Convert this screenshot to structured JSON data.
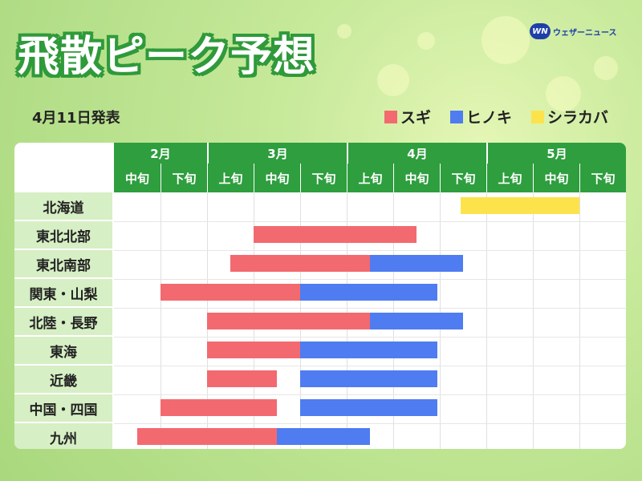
{
  "header": {
    "title": "飛散ピーク予想",
    "logo_mark": "WN",
    "logo_text": "ウェザーニュース",
    "date": "4月11日発表"
  },
  "colors": {
    "スギ": "#f26a6f",
    "ヒノキ": "#4f7cf0",
    "シラカバ": "#fce34c",
    "header_green": "#2e9e3e"
  },
  "chart_data": {
    "type": "gantt",
    "title": "飛散ピーク予想",
    "legend": [
      "スギ",
      "ヒノキ",
      "シラカバ"
    ],
    "legend_position": "top-right",
    "months": [
      {
        "label": "2月",
        "periods": [
          "中旬",
          "下旬"
        ]
      },
      {
        "label": "3月",
        "periods": [
          "上旬",
          "中旬",
          "下旬"
        ]
      },
      {
        "label": "4月",
        "periods": [
          "上旬",
          "中旬",
          "下旬"
        ]
      },
      {
        "label": "5月",
        "periods": [
          "上旬",
          "中旬",
          "下旬"
        ]
      }
    ],
    "period_unit_note_start": "2月中旬",
    "rows": [
      {
        "region": "北海道",
        "bars": [
          {
            "type": "シラカバ",
            "start": 7.45,
            "end": 10.0
          }
        ]
      },
      {
        "region": "東北北部",
        "bars": [
          {
            "type": "スギ",
            "start": 3.0,
            "end": 6.5
          }
        ]
      },
      {
        "region": "東北南部",
        "bars": [
          {
            "type": "スギ",
            "start": 2.5,
            "end": 5.5
          },
          {
            "type": "ヒノキ",
            "start": 5.5,
            "end": 7.5
          }
        ]
      },
      {
        "region": "関東・山梨",
        "bars": [
          {
            "type": "スギ",
            "start": 1.0,
            "end": 4.0
          },
          {
            "type": "ヒノキ",
            "start": 4.0,
            "end": 6.95
          }
        ]
      },
      {
        "region": "北陸・長野",
        "bars": [
          {
            "type": "スギ",
            "start": 2.0,
            "end": 5.5
          },
          {
            "type": "ヒノキ",
            "start": 5.5,
            "end": 7.5
          }
        ]
      },
      {
        "region": "東海",
        "bars": [
          {
            "type": "スギ",
            "start": 2.0,
            "end": 4.0
          },
          {
            "type": "ヒノキ",
            "start": 4.0,
            "end": 6.95
          }
        ]
      },
      {
        "region": "近畿",
        "bars": [
          {
            "type": "スギ",
            "start": 2.0,
            "end": 3.5
          },
          {
            "type": "ヒノキ",
            "start": 4.0,
            "end": 6.95
          }
        ]
      },
      {
        "region": "中国・四国",
        "bars": [
          {
            "type": "スギ",
            "start": 1.0,
            "end": 3.5
          },
          {
            "type": "ヒノキ",
            "start": 4.0,
            "end": 6.95
          }
        ]
      },
      {
        "region": "九州",
        "bars": [
          {
            "type": "スギ",
            "start": 0.5,
            "end": 3.5
          },
          {
            "type": "ヒノキ",
            "start": 3.5,
            "end": 5.5
          }
        ]
      }
    ]
  }
}
